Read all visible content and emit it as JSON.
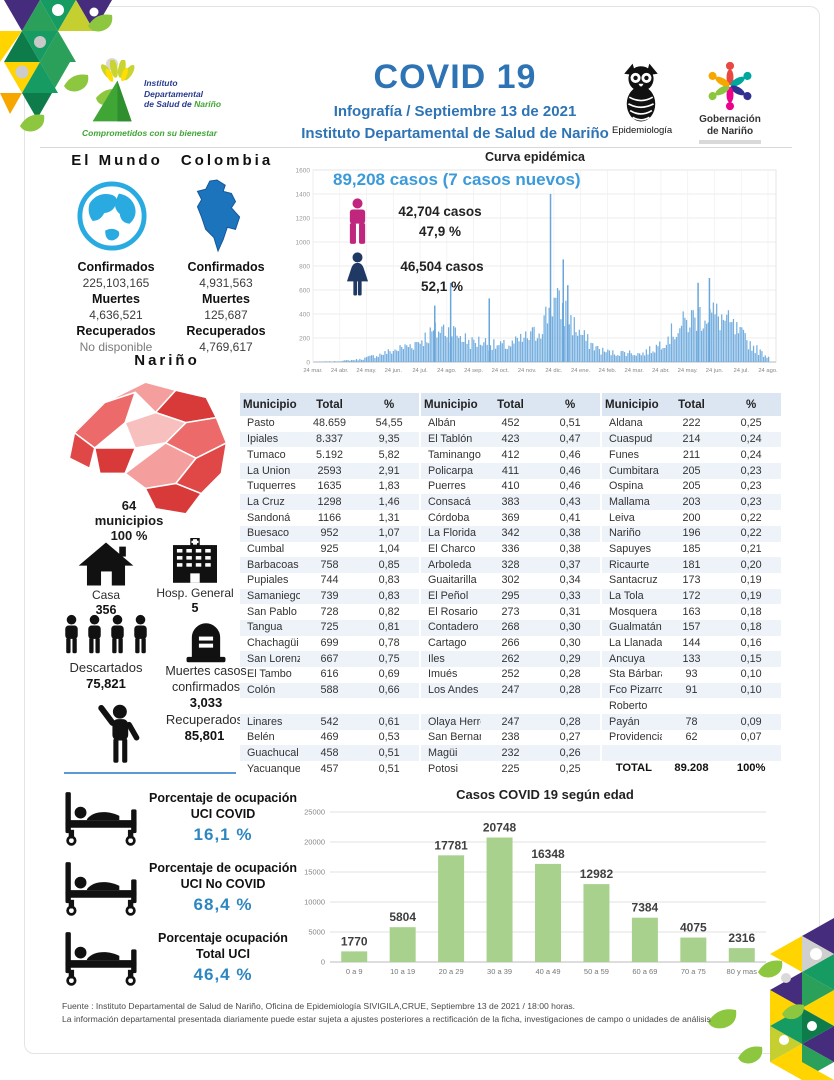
{
  "header": {
    "title": "COVID 19",
    "subtitle1": "Infografía / Septiembre 13 de 2021",
    "subtitle2": "Instituto Departamental de Salud de Nariño",
    "idsn": {
      "line1": "Instituto",
      "line2": "Departamental",
      "line3a": "de Salud de",
      "line3b": "Nariño",
      "tagline": "Comprometidos con su bienestar"
    },
    "epidemiologia": "Epidemiología",
    "gobernacion": {
      "line1": "Gobernación",
      "line2": "de Nariño"
    }
  },
  "labels": {
    "confirmados": "Confirmados",
    "muertes": "Muertes",
    "recuperados": "Recuperados"
  },
  "world": {
    "title": "El Mundo",
    "confirmados": "225,103,165",
    "muertes": "4,636,521",
    "recuperados": "No disponible"
  },
  "colombia": {
    "title": "Colombia",
    "confirmados": "4,931,563",
    "muertes": "125,687",
    "recuperados": "4,769,617"
  },
  "narino": {
    "title": "Nariño",
    "municipios_count": "64",
    "municipios_label": "municipios",
    "municipios_pct": "100 %",
    "casa_label": "Casa",
    "casa_value": "356",
    "hosp_label": "Hosp. General",
    "hosp_value": "5",
    "descartados_label": "Descartados",
    "descartados_value": "75,821",
    "muertes_label": "Muertes casos confirmados",
    "muertes_value": "3,033",
    "recuperados_label": "Recuperados",
    "recuperados_value": "85,801"
  },
  "curva": {
    "title": "Curva epidémica",
    "casos_line": "89,208 casos (7 casos nuevos)",
    "male_casos": "42,704  casos",
    "male_pct": "47,9 %",
    "female_casos": "46,504  casos",
    "female_pct": "52,1 %"
  },
  "table": {
    "headers": [
      "Municipio",
      "Total",
      "%"
    ],
    "groups": [
      [
        [
          "Pasto",
          "48.659",
          "54,55"
        ],
        [
          "Ipiales",
          "8.337",
          "9,35"
        ],
        [
          "Tumaco",
          "5.192",
          "5,82"
        ],
        [
          "La Union",
          "2593",
          "2,91"
        ],
        [
          "Tuquerres",
          "1635",
          "1,83"
        ],
        [
          "La Cruz",
          "1298",
          "1,46"
        ],
        [
          "Sandoná",
          "1166",
          "1,31"
        ],
        [
          "Buesaco",
          "952",
          "1,07"
        ],
        [
          "Cumbal",
          "925",
          "1,04"
        ],
        [
          "Barbacoas",
          "758",
          "0,85"
        ],
        [
          "Pupiales",
          "744",
          "0,83"
        ],
        [
          "Samaniego",
          "739",
          "0,83"
        ],
        [
          "San Pablo",
          "728",
          "0,82"
        ],
        [
          "Tangua",
          "725",
          "0,81"
        ],
        [
          "Chachagüi",
          "699",
          "0,78"
        ],
        [
          "San Lorenzo",
          "667",
          "0,75"
        ],
        [
          "El Tambo",
          "616",
          "0,69"
        ],
        [
          "Colón",
          "588",
          "0,66"
        ],
        [
          "",
          "",
          ""
        ],
        [
          "Linares",
          "542",
          "0,61"
        ],
        [
          "Belén",
          "469",
          "0,53"
        ],
        [
          "Guachucal",
          "458",
          "0,51"
        ],
        [
          "Yacuanquer",
          "457",
          "0,51"
        ]
      ],
      [
        [
          "Albán",
          "452",
          "0,51"
        ],
        [
          "El Tablón",
          "423",
          "0,47"
        ],
        [
          "Taminango",
          "412",
          "0,46"
        ],
        [
          "Policarpa",
          "411",
          "0,46"
        ],
        [
          "Puerres",
          "410",
          "0,46"
        ],
        [
          "Consacá",
          "383",
          "0,43"
        ],
        [
          "Córdoba",
          "369",
          "0,41"
        ],
        [
          "La Florida",
          "342",
          "0,38"
        ],
        [
          "El Charco",
          "336",
          "0,38"
        ],
        [
          "Arboleda",
          "328",
          "0,37"
        ],
        [
          "Guaitarilla",
          "302",
          "0,34"
        ],
        [
          "El Peñol",
          "295",
          "0,33"
        ],
        [
          "El Rosario",
          "273",
          "0,31"
        ],
        [
          "Contadero",
          "268",
          "0,30"
        ],
        [
          "Cartago",
          "266",
          "0,30"
        ],
        [
          "Iles",
          "262",
          "0,29"
        ],
        [
          "Imués",
          "252",
          "0,28"
        ],
        [
          "Los Andes",
          "247",
          "0,28"
        ],
        [
          "",
          "",
          ""
        ],
        [
          "Olaya Herrera",
          "247",
          "0,28"
        ],
        [
          "San Bernardo",
          "238",
          "0,27"
        ],
        [
          "Magüi",
          "232",
          "0,26"
        ],
        [
          "Potosi",
          "225",
          "0,25"
        ]
      ],
      [
        [
          "Aldana",
          "222",
          "0,25"
        ],
        [
          "Cuaspud",
          "214",
          "0,24"
        ],
        [
          "Funes",
          "211",
          "0,24"
        ],
        [
          "Cumbitara",
          "205",
          "0,23"
        ],
        [
          "Ospina",
          "205",
          "0,23"
        ],
        [
          "Mallama",
          "203",
          "0,23"
        ],
        [
          "Leiva",
          "200",
          "0,22"
        ],
        [
          "Nariño",
          "196",
          "0,22"
        ],
        [
          "Sapuyes",
          "185",
          "0,21"
        ],
        [
          "Ricaurte",
          "181",
          "0,20"
        ],
        [
          "Santacruz",
          "173",
          "0,19"
        ],
        [
          "La Tola",
          "172",
          "0,19"
        ],
        [
          "Mosquera",
          "163",
          "0,18"
        ],
        [
          "Gualmatán",
          "157",
          "0,18"
        ],
        [
          "La Llanada",
          "144",
          "0,16"
        ],
        [
          "Ancuya",
          "133",
          "0,15"
        ],
        [
          "Sta Bárbara",
          "93",
          "0,10"
        ],
        [
          "Fco Pizarro",
          "91",
          "0,10"
        ],
        [
          "Roberto",
          "",
          ""
        ],
        [
          "Payán",
          "78",
          "0,09"
        ],
        [
          "Providencia",
          "62",
          "0,07"
        ],
        [
          "",
          "",
          ""
        ],
        [
          "TOTAL",
          "89.208",
          "100%"
        ]
      ]
    ]
  },
  "uci": {
    "items": [
      {
        "line1": "Porcentaje de ocupación",
        "line2": "UCI COVID",
        "value": "16,1  %"
      },
      {
        "line1": "Porcentaje de ocupación",
        "line2": "UCI No COVID",
        "value": "68,4  %"
      },
      {
        "line1": "Porcentaje ocupación",
        "line2": "Total UCI",
        "value": "46,4  %"
      }
    ]
  },
  "footer": {
    "line1": "Fuente : Instituto Departamental de Salud de Nariño, Oficina de Epidemiología SIVIGILA,CRUE,  Septiembre 13 de 2021 / 18:00  horas.",
    "line2": "La información departamental presentada diariamente puede estar sujeta a ajustes posteriores a  rectificación de la ficha, investigaciones de campo o unidades de análisis"
  },
  "colors": {
    "title_blue": "#2E74B5",
    "accent_blue": "#3B9AD9",
    "value_blue": "#2E86C1",
    "male_pink": "#C0267E",
    "female_navy": "#1F3864",
    "epi_bar_blue": "#74AEDF",
    "age_bar_green": "#A9D18E",
    "map_red": "#E04848"
  },
  "chart_data": [
    {
      "type": "bar",
      "title": "Curva epidémica",
      "xlabel": "",
      "ylabel": "",
      "ylim": [
        0,
        1600
      ],
      "yticks": [
        0,
        200,
        400,
        600,
        800,
        1000,
        1200,
        1400,
        1600
      ],
      "x_tick_labels": [
        "24 mar.",
        "24 abr.",
        "24 may.",
        "24 jun.",
        "24 jul.",
        "24 ago.",
        "24 sep.",
        "24 oct.",
        "24 nov.",
        "24 dic.",
        "24 ene.",
        "24 feb.",
        "24 mar.",
        "24 abr.",
        "24 may.",
        "24 jun.",
        "24 jul.",
        "24 ago."
      ],
      "note": "daily new cases, values estimated from pixel heights",
      "envelope_points_approx": [
        [
          0,
          3
        ],
        [
          0.05,
          8
        ],
        [
          0.1,
          30
        ],
        [
          0.14,
          80
        ],
        [
          0.18,
          140
        ],
        [
          0.22,
          210
        ],
        [
          0.26,
          330
        ],
        [
          0.285,
          380
        ],
        [
          0.3,
          360
        ],
        [
          0.32,
          300
        ],
        [
          0.345,
          220
        ],
        [
          0.37,
          240
        ],
        [
          0.4,
          180
        ],
        [
          0.43,
          190
        ],
        [
          0.46,
          260
        ],
        [
          0.49,
          330
        ],
        [
          0.51,
          520
        ],
        [
          0.525,
          700
        ],
        [
          0.54,
          620
        ],
        [
          0.555,
          560
        ],
        [
          0.57,
          420
        ],
        [
          0.6,
          240
        ],
        [
          0.63,
          130
        ],
        [
          0.66,
          100
        ],
        [
          0.69,
          110
        ],
        [
          0.72,
          90
        ],
        [
          0.75,
          160
        ],
        [
          0.78,
          300
        ],
        [
          0.81,
          420
        ],
        [
          0.84,
          520
        ],
        [
          0.865,
          560
        ],
        [
          0.89,
          520
        ],
        [
          0.915,
          420
        ],
        [
          0.94,
          300
        ],
        [
          0.965,
          180
        ],
        [
          0.985,
          100
        ],
        [
          1,
          60
        ]
      ],
      "peak_spikes_approx": [
        [
          0.265,
          470
        ],
        [
          0.3,
          660
        ],
        [
          0.385,
          530
        ],
        [
          0.52,
          1400
        ],
        [
          0.548,
          855
        ],
        [
          0.558,
          640
        ],
        [
          0.845,
          660
        ],
        [
          0.87,
          700
        ]
      ],
      "grid": true,
      "legend": false
    },
    {
      "type": "bar",
      "title": "Casos COVID 19  según edad",
      "categories": [
        "0 a 9",
        "10 a 19",
        "20 a 29",
        "30 a 39",
        "40 a 49",
        "50 a 59",
        "60 a 69",
        "70 a 75",
        "80 y mas"
      ],
      "values": [
        1770,
        5804,
        17781,
        20748,
        16348,
        12982,
        7384,
        4075,
        2316
      ],
      "xlabel": "",
      "ylabel": "",
      "ylim": [
        0,
        25000
      ],
      "yticks": [
        0,
        5000,
        10000,
        15000,
        20000,
        25000
      ],
      "grid": true,
      "legend": false
    }
  ]
}
